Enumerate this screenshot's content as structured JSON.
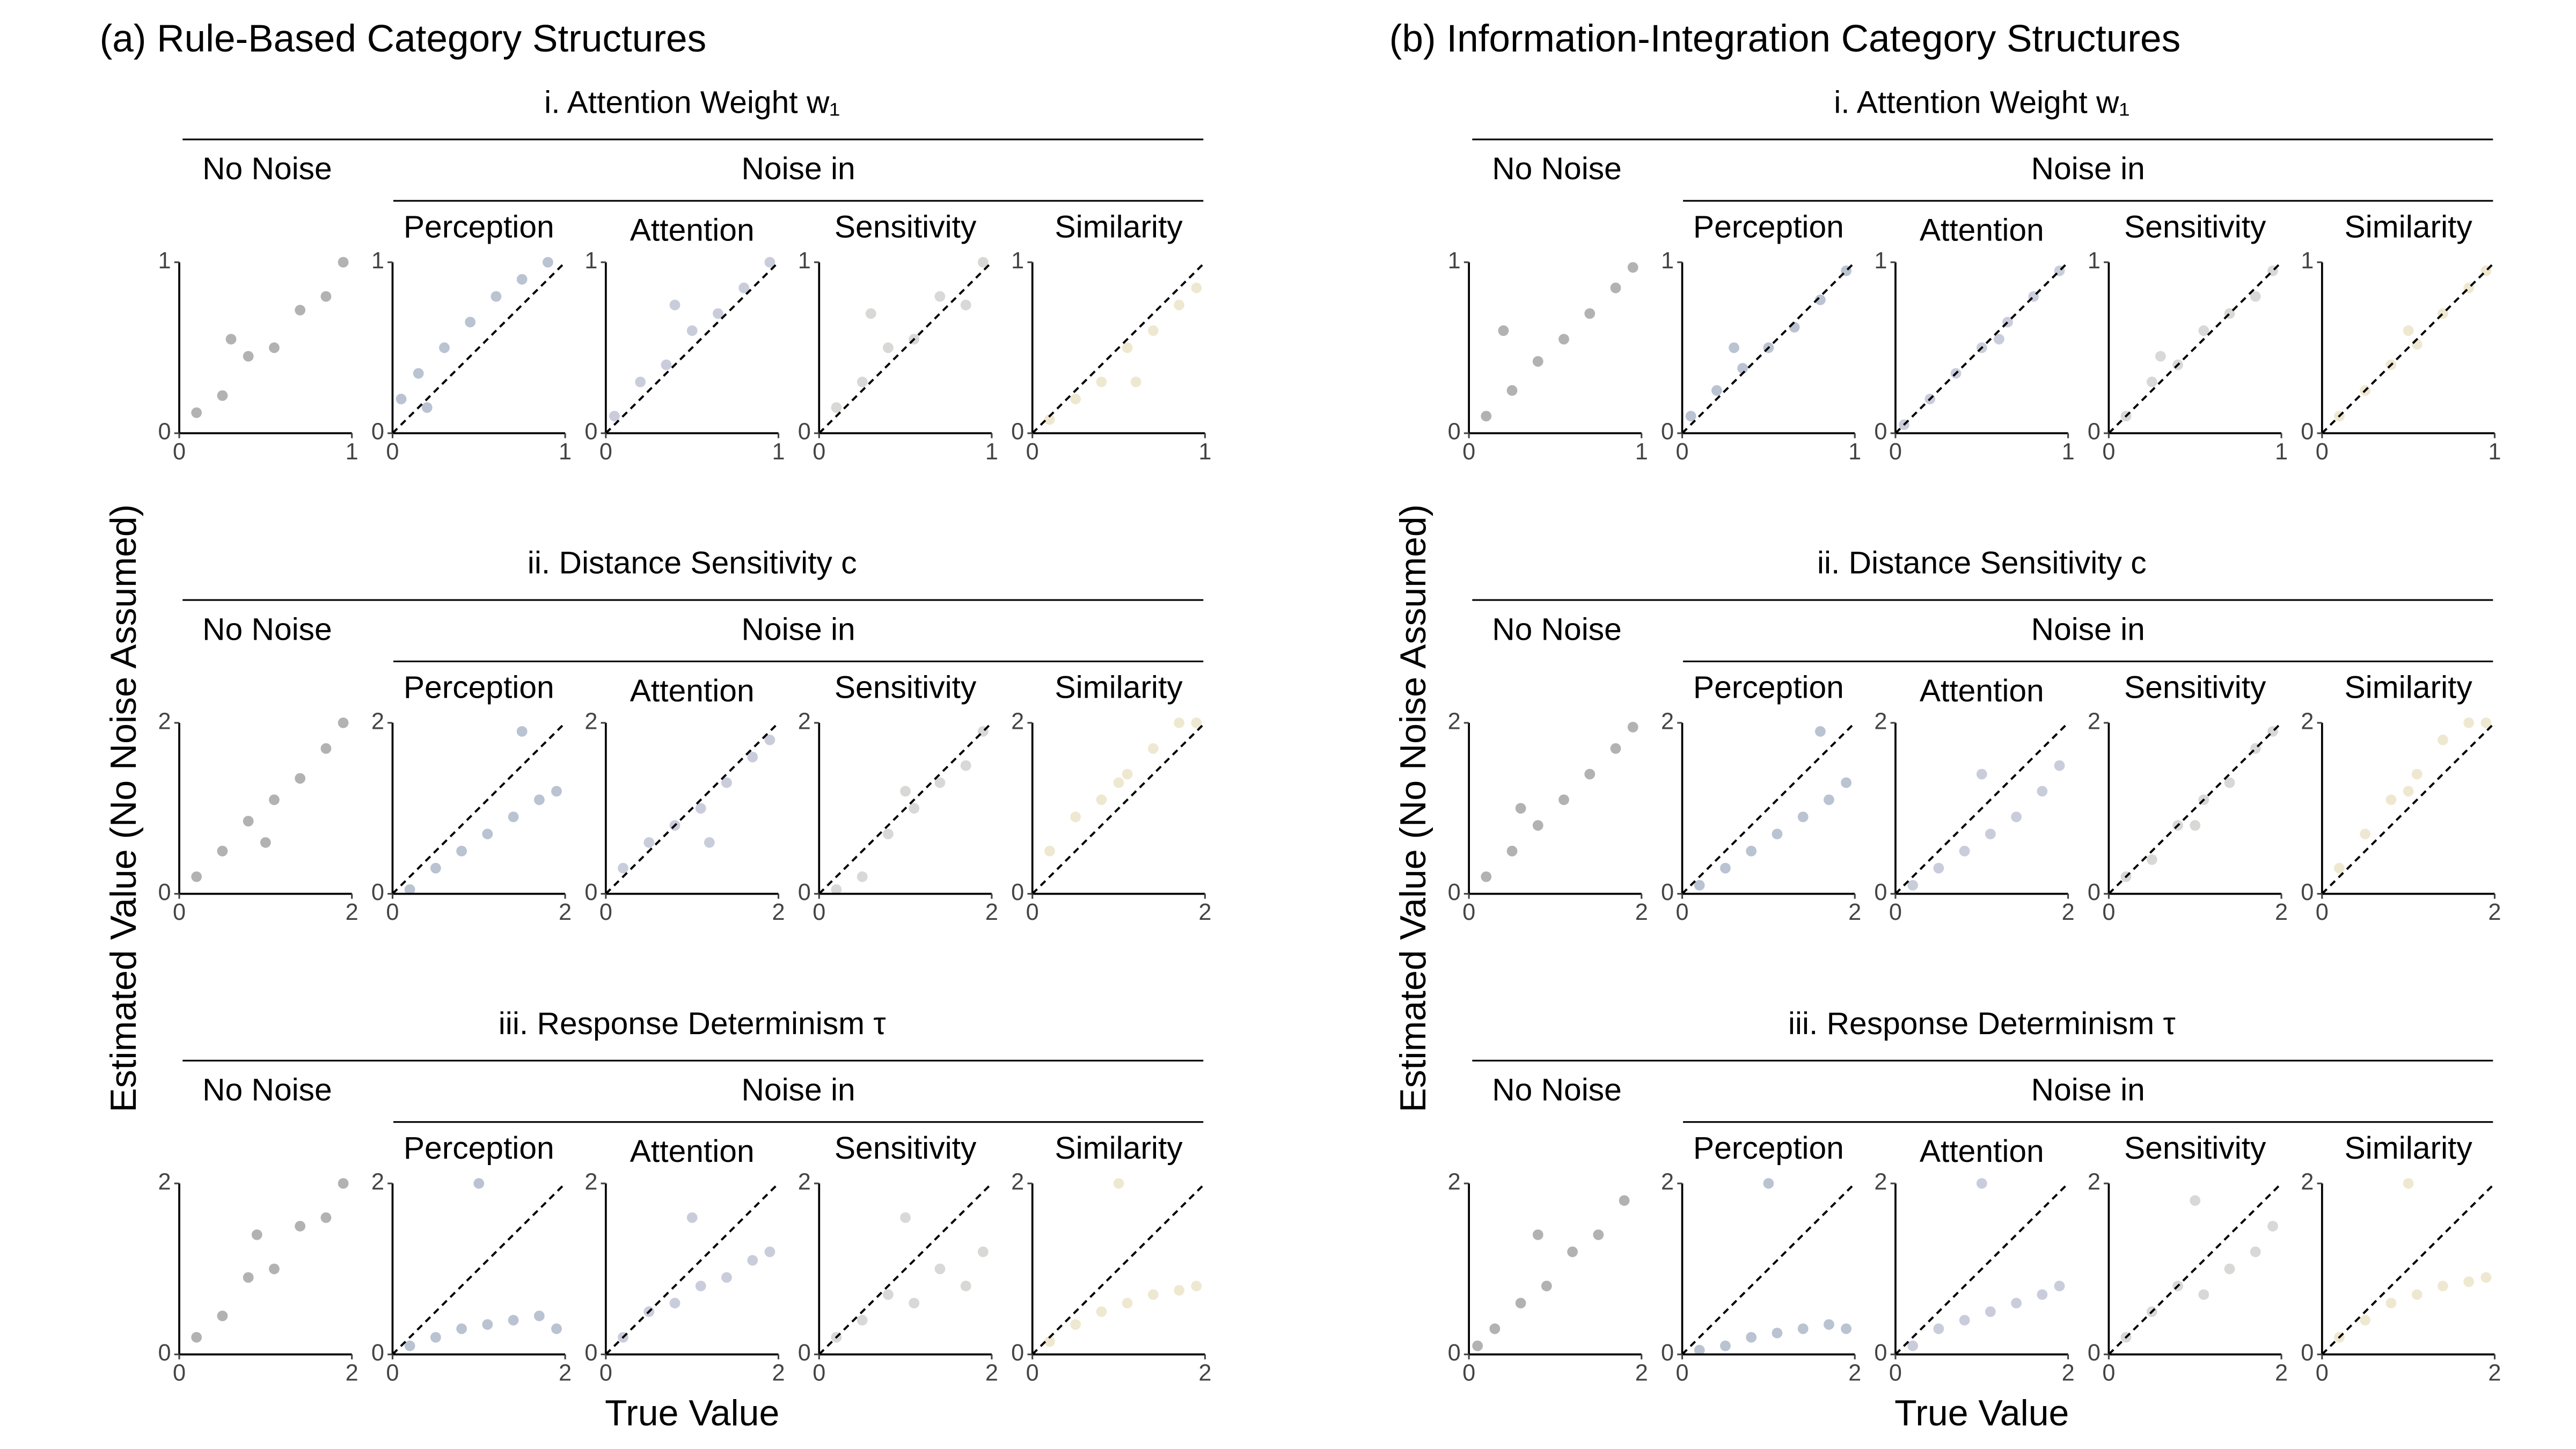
{
  "chart_data": [
    {
      "type": "scatter",
      "title": "(a) Rule-Based Category Structures",
      "xlabel": "True Value",
      "ylabel": "Estimated Value (No Noise Assumed)",
      "group_label": "Noise in",
      "columns": [
        {
          "name": "No Noise",
          "color": "#000000",
          "identity_line": false
        },
        {
          "name": "Perception",
          "color": "#1b3768",
          "identity_line": true
        },
        {
          "name": "Attention",
          "color": "#4c5888",
          "identity_line": true
        },
        {
          "name": "Sensitivity",
          "color": "#7d7d7a",
          "identity_line": true
        },
        {
          "name": "Similarity",
          "color": "#c9b466",
          "identity_line": true
        }
      ],
      "rows": [
        {
          "title": "i. Attention Weight w₁",
          "xlim": [
            0,
            1
          ],
          "ylim": [
            0,
            1
          ],
          "xticks": [
            0,
            1
          ],
          "yticks": [
            0,
            1
          ],
          "panels": [
            {
              "x": [
                0.1,
                0.25,
                0.4,
                0.55,
                0.7,
                0.85,
                0.95,
                0.3
              ],
              "y": [
                0.12,
                0.22,
                0.45,
                0.5,
                0.72,
                0.8,
                1,
                0.55
              ]
            },
            {
              "x": [
                0.05,
                0.15,
                0.3,
                0.45,
                0.6,
                0.75,
                0.9,
                0.2
              ],
              "y": [
                0.2,
                0.35,
                0.5,
                0.65,
                0.8,
                0.9,
                1,
                0.15
              ]
            },
            {
              "x": [
                0.05,
                0.2,
                0.35,
                0.5,
                0.65,
                0.8,
                0.95,
                0.4
              ],
              "y": [
                0.1,
                0.3,
                0.4,
                0.6,
                0.7,
                0.85,
                1,
                0.75
              ]
            },
            {
              "x": [
                0.1,
                0.25,
                0.4,
                0.55,
                0.7,
                0.85,
                0.95,
                0.3
              ],
              "y": [
                0.15,
                0.3,
                0.5,
                0.55,
                0.8,
                0.75,
                1,
                0.7
              ]
            },
            {
              "x": [
                0.1,
                0.25,
                0.4,
                0.55,
                0.7,
                0.85,
                0.95,
                0.6
              ],
              "y": [
                0.08,
                0.2,
                0.3,
                0.5,
                0.6,
                0.75,
                0.85,
                0.3
              ]
            }
          ]
        },
        {
          "title": "ii. Distance Sensitivity c",
          "xlim": [
            0,
            2
          ],
          "ylim": [
            0,
            2
          ],
          "xticks": [
            0,
            2
          ],
          "yticks": [
            0,
            2
          ],
          "panels": [
            {
              "x": [
                0.2,
                0.5,
                0.8,
                1.1,
                1.4,
                1.7,
                1.9,
                1.0
              ],
              "y": [
                0.2,
                0.5,
                0.85,
                1.1,
                1.35,
                1.7,
                2,
                0.6
              ]
            },
            {
              "x": [
                0.2,
                0.5,
                0.8,
                1.1,
                1.4,
                1.7,
                1.9,
                1.5
              ],
              "y": [
                0.05,
                0.3,
                0.5,
                0.7,
                0.9,
                1.1,
                1.2,
                1.9
              ]
            },
            {
              "x": [
                0.2,
                0.5,
                0.8,
                1.1,
                1.4,
                1.7,
                1.9,
                1.2
              ],
              "y": [
                0.3,
                0.6,
                0.8,
                1.0,
                1.3,
                1.6,
                1.8,
                0.6
              ]
            },
            {
              "x": [
                0.2,
                0.5,
                0.8,
                1.1,
                1.4,
                1.7,
                1.9,
                1.0
              ],
              "y": [
                0.05,
                0.2,
                0.7,
                1.0,
                1.3,
                1.5,
                1.9,
                1.2
              ]
            },
            {
              "x": [
                0.2,
                0.5,
                0.8,
                1.1,
                1.4,
                1.7,
                1.9,
                1.0
              ],
              "y": [
                0.5,
                0.9,
                1.1,
                1.4,
                1.7,
                2,
                2,
                1.3
              ]
            }
          ]
        },
        {
          "title": "iii. Response Determinism τ",
          "xlim": [
            0,
            2
          ],
          "ylim": [
            0,
            2
          ],
          "xticks": [
            0,
            2
          ],
          "yticks": [
            0,
            2
          ],
          "panels": [
            {
              "x": [
                0.2,
                0.5,
                0.8,
                1.1,
                1.4,
                1.7,
                1.9,
                0.9
              ],
              "y": [
                0.2,
                0.45,
                0.9,
                1.0,
                1.5,
                1.6,
                2,
                1.4
              ]
            },
            {
              "x": [
                0.2,
                0.5,
                0.8,
                1.1,
                1.4,
                1.7,
                1.9,
                1.0
              ],
              "y": [
                0.1,
                0.2,
                0.3,
                0.35,
                0.4,
                0.45,
                0.3,
                2
              ]
            },
            {
              "x": [
                0.2,
                0.5,
                0.8,
                1.1,
                1.4,
                1.7,
                1.9,
                1.0
              ],
              "y": [
                0.2,
                0.5,
                0.6,
                0.8,
                0.9,
                1.1,
                1.2,
                1.6
              ]
            },
            {
              "x": [
                0.2,
                0.5,
                0.8,
                1.1,
                1.4,
                1.7,
                1.9,
                1.0
              ],
              "y": [
                0.2,
                0.4,
                0.7,
                0.6,
                1.0,
                0.8,
                1.2,
                1.6
              ]
            },
            {
              "x": [
                0.2,
                0.5,
                0.8,
                1.1,
                1.4,
                1.7,
                1.9,
                1.0
              ],
              "y": [
                0.15,
                0.35,
                0.5,
                0.6,
                0.7,
                0.75,
                0.8,
                2
              ]
            }
          ]
        }
      ]
    },
    {
      "type": "scatter",
      "title": "(b) Information-Integration Category Structures",
      "xlabel": "True Value",
      "ylabel": "Estimated Value (No Noise Assumed)",
      "group_label": "Noise in",
      "columns": [
        {
          "name": "No Noise",
          "color": "#000000",
          "identity_line": false
        },
        {
          "name": "Perception",
          "color": "#1b3768",
          "identity_line": true
        },
        {
          "name": "Attention",
          "color": "#4c5888",
          "identity_line": true
        },
        {
          "name": "Sensitivity",
          "color": "#7d7d7a",
          "identity_line": true
        },
        {
          "name": "Similarity",
          "color": "#c9b466",
          "identity_line": true
        }
      ],
      "rows": [
        {
          "title": "i. Attention Weight w₁",
          "xlim": [
            0,
            1
          ],
          "ylim": [
            0,
            1
          ],
          "xticks": [
            0,
            1
          ],
          "yticks": [
            0,
            1
          ],
          "panels": [
            {
              "x": [
                0.1,
                0.25,
                0.4,
                0.55,
                0.7,
                0.85,
                0.95,
                0.2
              ],
              "y": [
                0.1,
                0.25,
                0.42,
                0.55,
                0.7,
                0.85,
                0.97,
                0.6
              ]
            },
            {
              "x": [
                0.05,
                0.2,
                0.35,
                0.5,
                0.65,
                0.8,
                0.95,
                0.3
              ],
              "y": [
                0.1,
                0.25,
                0.38,
                0.5,
                0.62,
                0.78,
                0.95,
                0.5
              ]
            },
            {
              "x": [
                0.05,
                0.2,
                0.35,
                0.5,
                0.65,
                0.8,
                0.95,
                0.6
              ],
              "y": [
                0.05,
                0.2,
                0.35,
                0.5,
                0.65,
                0.8,
                0.95,
                0.55
              ]
            },
            {
              "x": [
                0.1,
                0.25,
                0.4,
                0.55,
                0.7,
                0.85,
                0.95,
                0.3
              ],
              "y": [
                0.1,
                0.3,
                0.4,
                0.6,
                0.7,
                0.8,
                0.95,
                0.45
              ]
            },
            {
              "x": [
                0.1,
                0.25,
                0.4,
                0.55,
                0.7,
                0.85,
                0.95,
                0.5
              ],
              "y": [
                0.1,
                0.25,
                0.4,
                0.52,
                0.7,
                0.85,
                0.95,
                0.6
              ]
            }
          ]
        },
        {
          "title": "ii. Distance Sensitivity c",
          "xlim": [
            0,
            2
          ],
          "ylim": [
            0,
            2
          ],
          "xticks": [
            0,
            2
          ],
          "yticks": [
            0,
            2
          ],
          "panels": [
            {
              "x": [
                0.2,
                0.5,
                0.8,
                1.1,
                1.4,
                1.7,
                1.9,
                0.6
              ],
              "y": [
                0.2,
                0.5,
                0.8,
                1.1,
                1.4,
                1.7,
                1.95,
                1.0
              ]
            },
            {
              "x": [
                0.2,
                0.5,
                0.8,
                1.1,
                1.4,
                1.7,
                1.9,
                1.6
              ],
              "y": [
                0.1,
                0.3,
                0.5,
                0.7,
                0.9,
                1.1,
                1.3,
                1.9
              ]
            },
            {
              "x": [
                0.2,
                0.5,
                0.8,
                1.1,
                1.4,
                1.7,
                1.9,
                1.0
              ],
              "y": [
                0.1,
                0.3,
                0.5,
                0.7,
                0.9,
                1.2,
                1.5,
                1.4
              ]
            },
            {
              "x": [
                0.2,
                0.5,
                0.8,
                1.1,
                1.4,
                1.7,
                1.9,
                1.0
              ],
              "y": [
                0.2,
                0.4,
                0.8,
                1.1,
                1.3,
                1.7,
                1.9,
                0.8
              ]
            },
            {
              "x": [
                0.2,
                0.5,
                0.8,
                1.1,
                1.4,
                1.7,
                1.9,
                1.0
              ],
              "y": [
                0.3,
                0.7,
                1.1,
                1.4,
                1.8,
                2,
                2,
                1.2
              ]
            }
          ]
        },
        {
          "title": "iii. Response Determinism τ",
          "xlim": [
            0,
            2
          ],
          "ylim": [
            0,
            2
          ],
          "xticks": [
            0,
            2
          ],
          "yticks": [
            0,
            2
          ],
          "panels": [
            {
              "x": [
                0.1,
                0.3,
                0.6,
                0.9,
                1.2,
                1.5,
                1.8,
                0.8
              ],
              "y": [
                0.1,
                0.3,
                0.6,
                0.8,
                1.2,
                1.4,
                1.8,
                1.4
              ]
            },
            {
              "x": [
                0.2,
                0.5,
                0.8,
                1.1,
                1.4,
                1.7,
                1.9,
                1.0
              ],
              "y": [
                0.05,
                0.1,
                0.2,
                0.25,
                0.3,
                0.35,
                0.3,
                2
              ]
            },
            {
              "x": [
                0.2,
                0.5,
                0.8,
                1.1,
                1.4,
                1.7,
                1.9,
                1.0
              ],
              "y": [
                0.1,
                0.3,
                0.4,
                0.5,
                0.6,
                0.7,
                0.8,
                2
              ]
            },
            {
              "x": [
                0.2,
                0.5,
                0.8,
                1.1,
                1.4,
                1.7,
                1.9,
                1.0
              ],
              "y": [
                0.2,
                0.5,
                0.8,
                0.7,
                1.0,
                1.2,
                1.5,
                1.8
              ]
            },
            {
              "x": [
                0.2,
                0.5,
                0.8,
                1.1,
                1.4,
                1.7,
                1.9,
                1.0
              ],
              "y": [
                0.2,
                0.4,
                0.6,
                0.7,
                0.8,
                0.85,
                0.9,
                2
              ]
            }
          ]
        }
      ]
    }
  ]
}
